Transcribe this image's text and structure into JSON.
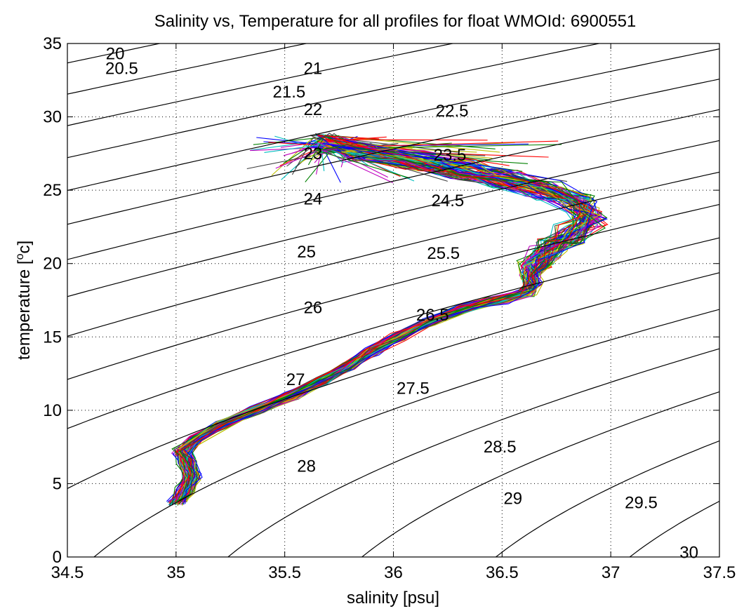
{
  "chart_data": {
    "type": "line",
    "title": "Salinity vs, Temperature for all profiles for float WMOId: 6900551",
    "xlabel": "salinity [psu]",
    "ylabel_parts": [
      "temperature [",
      "o",
      "c]"
    ],
    "xlim": [
      34.5,
      37.5
    ],
    "ylim": [
      0,
      35
    ],
    "xticks": [
      34.5,
      35,
      35.5,
      36,
      36.5,
      37,
      37.5
    ],
    "xtick_labels": [
      "34.5",
      "35",
      "35.5",
      "36",
      "36.5",
      "37",
      "37.5"
    ],
    "yticks": [
      0,
      5,
      10,
      15,
      20,
      25,
      30,
      35
    ],
    "ytick_labels": [
      "0",
      "5",
      "10",
      "15",
      "20",
      "25",
      "30",
      "35"
    ],
    "grid": true,
    "isopycnals": [
      {
        "sigma": 20.0,
        "label": "20",
        "label_at": [
          34.72,
          34.3
        ]
      },
      {
        "sigma": 20.5,
        "label": "20.5",
        "label_at": [
          34.75,
          33.3
        ]
      },
      {
        "sigma": 21.0,
        "label": "21",
        "label_at": [
          35.63,
          33.3
        ]
      },
      {
        "sigma": 21.5,
        "label": "21.5",
        "label_at": [
          35.52,
          31.7
        ]
      },
      {
        "sigma": 22.0,
        "label": "22",
        "label_at": [
          35.63,
          30.5
        ]
      },
      {
        "sigma": 22.5,
        "label": "22.5",
        "label_at": [
          36.27,
          30.4
        ]
      },
      {
        "sigma": 23.0,
        "label": "23",
        "label_at": [
          35.63,
          27.5
        ]
      },
      {
        "sigma": 23.5,
        "label": "23.5",
        "label_at": [
          36.26,
          27.4
        ]
      },
      {
        "sigma": 24.0,
        "label": "24",
        "label_at": [
          35.63,
          24.4
        ]
      },
      {
        "sigma": 24.5,
        "label": "24.5",
        "label_at": [
          36.25,
          24.3
        ]
      },
      {
        "sigma": 25.0,
        "label": "25",
        "label_at": [
          35.6,
          20.8
        ]
      },
      {
        "sigma": 25.5,
        "label": "25.5",
        "label_at": [
          36.23,
          20.7
        ]
      },
      {
        "sigma": 26.0,
        "label": "26",
        "label_at": [
          35.63,
          17.0
        ]
      },
      {
        "sigma": 26.5,
        "label": "26.5",
        "label_at": [
          36.18,
          16.5
        ]
      },
      {
        "sigma": 27.0,
        "label": "27",
        "label_at": [
          35.55,
          12.1
        ]
      },
      {
        "sigma": 27.5,
        "label": "27.5",
        "label_at": [
          36.09,
          11.5
        ]
      },
      {
        "sigma": 28.0,
        "label": "28",
        "label_at": [
          35.6,
          6.2
        ]
      },
      {
        "sigma": 28.5,
        "label": "28.5",
        "label_at": [
          36.49,
          7.5
        ]
      },
      {
        "sigma": 29.0,
        "label": "29",
        "label_at": [
          36.55,
          4.0
        ]
      },
      {
        "sigma": 29.5,
        "label": "29.5",
        "label_at": [
          37.14,
          3.7
        ]
      },
      {
        "sigma": 30.0,
        "label": "30",
        "label_at": [
          37.36,
          0.3
        ]
      }
    ],
    "profile_colors": [
      "#0000ff",
      "#008000",
      "#ff0000",
      "#00bfbf",
      "#bf00bf",
      "#bfbf00",
      "#404040"
    ],
    "profile_count": 80,
    "mean_profile": {
      "temperature": [
        3.5,
        4.5,
        5.5,
        6.5,
        7.2,
        8.0,
        9.0,
        10.0,
        11.0,
        12.0,
        13.0,
        14.0,
        15.0,
        16.0,
        17.0,
        17.5,
        18.0,
        18.6,
        19.2,
        20.0,
        21.0,
        22.0,
        23.0,
        24.0,
        25.0,
        25.8,
        26.4,
        27.0,
        27.6,
        28.2
      ],
      "salinity": [
        35.0,
        35.04,
        35.07,
        35.05,
        35.03,
        35.09,
        35.21,
        35.37,
        35.53,
        35.67,
        35.79,
        35.9,
        36.02,
        36.16,
        36.33,
        36.48,
        36.61,
        36.64,
        36.63,
        36.66,
        36.72,
        36.82,
        36.9,
        36.86,
        36.7,
        36.5,
        36.3,
        36.1,
        35.85,
        35.7
      ]
    }
  }
}
